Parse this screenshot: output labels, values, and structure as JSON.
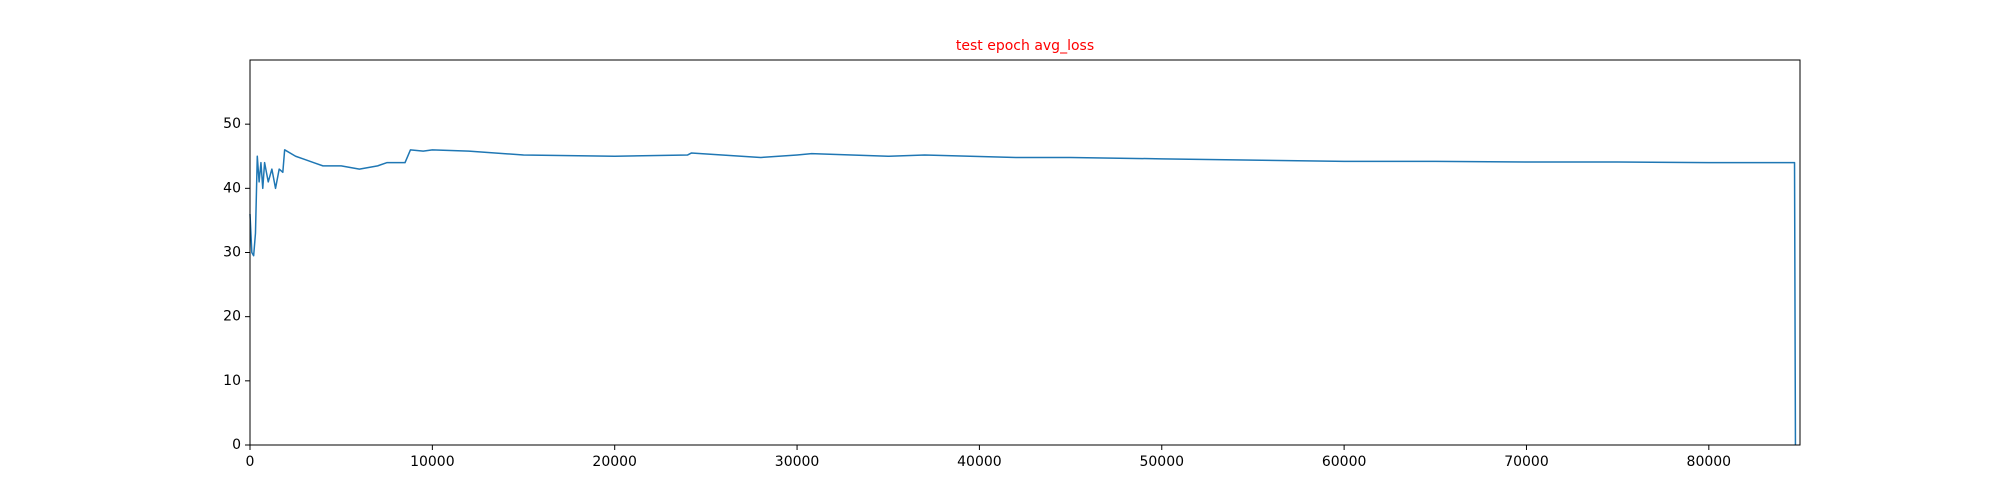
{
  "chart_data": {
    "type": "line",
    "title": "test epoch avg_loss",
    "title_color": "#ff0000",
    "x": [
      0,
      100,
      200,
      300,
      400,
      500,
      600,
      700,
      800,
      1000,
      1200,
      1400,
      1600,
      1800,
      1900,
      2500,
      3000,
      3500,
      4000,
      5000,
      6000,
      7000,
      7500,
      8500,
      8800,
      9500,
      10000,
      12000,
      15000,
      20000,
      24000,
      24200,
      28000,
      30000,
      30800,
      35000,
      37000,
      42000,
      45000,
      50000,
      55000,
      60000,
      65000,
      70000,
      75000,
      80000,
      84700,
      84750
    ],
    "series": [
      {
        "color": "#1f77b4",
        "values": [
          36,
          30,
          29.5,
          33,
          45,
          41,
          44,
          40,
          44,
          41,
          43,
          40,
          43,
          42.5,
          46,
          45,
          44.5,
          44,
          43.5,
          43.5,
          43,
          43.5,
          44,
          44,
          46,
          45.8,
          46,
          45.8,
          45.2,
          45,
          45.2,
          45.5,
          44.8,
          45.2,
          45.4,
          45,
          45.2,
          44.8,
          44.8,
          44.6,
          44.4,
          44.2,
          44.2,
          44.1,
          44.1,
          44,
          44,
          0
        ]
      }
    ],
    "xlim": [
      0,
      85000
    ],
    "ylim": [
      0,
      60
    ],
    "xticks": [
      0,
      10000,
      20000,
      30000,
      40000,
      50000,
      60000,
      70000,
      80000
    ],
    "yticks": [
      0,
      10,
      20,
      30,
      40,
      50
    ]
  }
}
